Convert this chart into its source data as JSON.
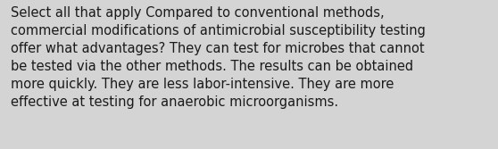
{
  "text": "Select all that apply Compared to conventional methods,\ncommercial modifications of antimicrobial susceptibility testing\noffer what advantages? They can test for microbes that cannot\nbe tested via the other methods. The results can be obtained\nmore quickly. They are less labor-intensive. They are more\neffective at testing for anaerobic microorganisms.",
  "background_color": "#d4d4d4",
  "text_color": "#1a1a1a",
  "font_size": 10.5,
  "fig_width": 5.58,
  "fig_height": 1.67,
  "dpi": 100
}
